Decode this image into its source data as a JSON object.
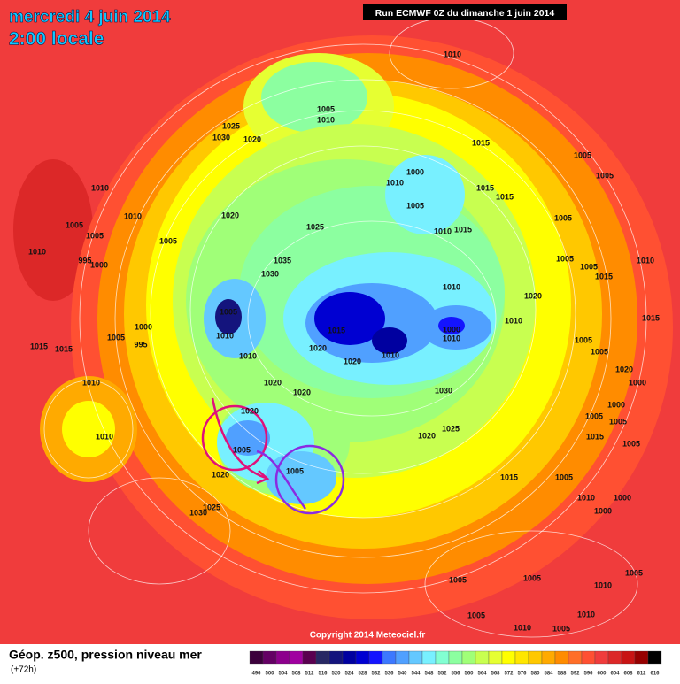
{
  "header": {
    "date": "mercredi 4 juin 2014",
    "time": "2:00 locale",
    "run": "Run ECMWF 0Z du dimanche 1 juin 2014"
  },
  "map": {
    "isobar_labels": [
      1010,
      1005,
      1010,
      1025,
      1030,
      1020,
      1015,
      1005,
      1000,
      1010,
      1015,
      1015,
      1005,
      1010,
      1005,
      1010,
      1020,
      1005,
      1005,
      1025,
      1010,
      1015,
      1005,
      1005,
      1010,
      1035,
      995,
      1000,
      1005,
      1005,
      1010,
      1015,
      1030,
      1010,
      1020,
      1005,
      1000,
      1010,
      1000,
      1015,
      1010,
      1010,
      1005,
      1015,
      1015,
      1015,
      995,
      1005,
      1020,
      1010,
      1010,
      1020,
      1005,
      1020,
      1000,
      1010,
      1020,
      1020,
      1030,
      1000,
      1020,
      1005,
      1005,
      1025,
      1010,
      1020,
      1015,
      1005,
      1005,
      1020,
      1005,
      1015,
      1005,
      1010,
      1000,
      1000,
      1025,
      1030,
      1005,
      1005,
      1005,
      1010,
      1005,
      1010,
      1005,
      1010
    ]
  },
  "footer": {
    "copyright": "Copyright 2014 Meteociel.fr",
    "title": "Géop. z500, pression niveau mer",
    "lead": "(+72h)"
  },
  "legend": {
    "labels": [
      496,
      500,
      504,
      508,
      512,
      516,
      520,
      524,
      528,
      532,
      536,
      540,
      544,
      548,
      552,
      556,
      560,
      564,
      568,
      572,
      576,
      580,
      584,
      588,
      592,
      596,
      600,
      604,
      608,
      612,
      616
    ],
    "colors": [
      "#3c003c",
      "#640064",
      "#8c008c",
      "#a000a0",
      "#5a0050",
      "#282864",
      "#14147d",
      "#0000a0",
      "#0000d2",
      "#1414ff",
      "#3c78ff",
      "#50a0ff",
      "#64c8ff",
      "#78f0ff",
      "#82ffd2",
      "#8cffa0",
      "#a0ff78",
      "#c8ff50",
      "#e6ff32",
      "#ffff00",
      "#ffe600",
      "#ffc800",
      "#ffaa00",
      "#ff8c00",
      "#ff6e28",
      "#ff5032",
      "#f03c3c",
      "#dc2828",
      "#c81414",
      "#960000",
      "#000000"
    ]
  }
}
